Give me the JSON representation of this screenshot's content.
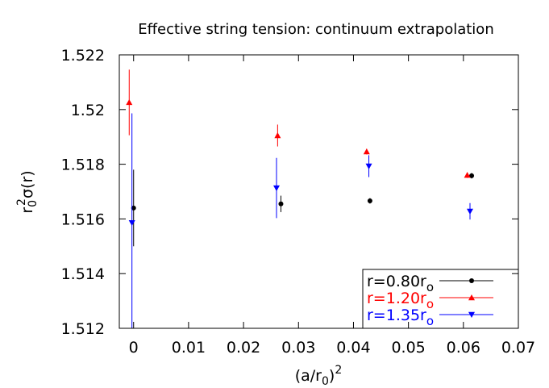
{
  "chart_data": {
    "type": "scatter",
    "title": "Effective string tension: continuum extrapolation",
    "x_label": [
      "(a/r",
      "0",
      ")",
      "2"
    ],
    "y_label": [
      "r",
      "0",
      "2",
      "σ(r)"
    ],
    "xlim": [
      -0.0026,
      0.07
    ],
    "xticks": [
      0,
      0.01,
      0.02,
      0.03,
      0.04,
      0.05,
      0.06,
      0.07
    ],
    "ylim": [
      1.512,
      1.522
    ],
    "yticks": [
      1.512,
      1.514,
      1.516,
      1.518,
      1.52,
      1.522
    ],
    "legend": "bottom-right",
    "series": [
      {
        "name": "r=0.80r",
        "name_subscript": "o",
        "color": "#000000",
        "marker": "circle",
        "x": [
          0,
          0.0268,
          0.043,
          0.0615
        ],
        "values": [
          1.5164,
          1.51655,
          1.51666,
          1.51758
        ],
        "errors": [
          0.0014,
          0.0003,
          0.0001,
          0.0001
        ]
      },
      {
        "name": "r=1.20r",
        "name_subscript": "o",
        "color": "#ff0000",
        "marker": "triangle-up",
        "x": [
          -0.0008,
          0.0262,
          0.0424,
          0.0607
        ],
        "values": [
          1.52026,
          1.51905,
          1.51846,
          1.5176
        ],
        "errors": [
          0.0012,
          0.0004,
          0.0001,
          0.0001
        ]
      },
      {
        "name": "r=1.35r",
        "name_subscript": "o",
        "color": "#0000ff",
        "marker": "triangle-down",
        "x": [
          -0.0003,
          0.026,
          0.0428,
          0.0612
        ],
        "values": [
          1.51586,
          1.51713,
          1.51793,
          1.51628
        ],
        "errors": [
          0.004,
          0.0011,
          0.0004,
          0.0003
        ]
      }
    ]
  }
}
